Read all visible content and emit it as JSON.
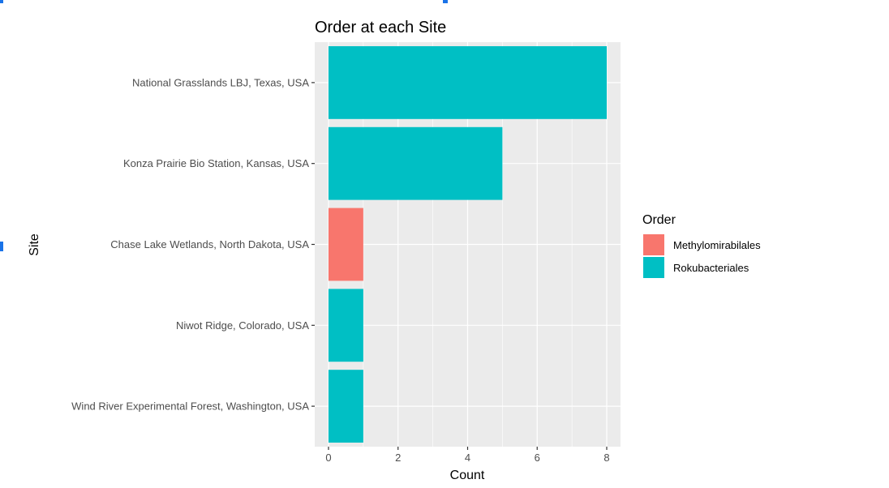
{
  "chart_data": {
    "type": "bar",
    "orientation": "horizontal",
    "title": "Order at each Site",
    "xlabel": "Count",
    "ylabel": "Site",
    "xlim": [
      0,
      8.4
    ],
    "x_ticks": [
      0,
      2,
      4,
      6,
      8
    ],
    "grid": true,
    "legend": {
      "title": "Order",
      "position": "right"
    },
    "categories": [
      "National Grasslands LBJ, Texas, USA",
      "Konza Prairie Bio Station, Kansas, USA",
      "Chase Lake Wetlands, North Dakota, USA",
      "Niwot Ridge, Colorado, USA",
      "Wind River Experimental Forest, Washington, USA"
    ],
    "series": [
      {
        "name": "Methylomirabilales",
        "color": "#F8766D",
        "values": [
          0,
          0,
          1,
          0,
          0
        ]
      },
      {
        "name": "Rokubacteriales",
        "color": "#00BFC4",
        "values": [
          8,
          5,
          0,
          1,
          1
        ]
      }
    ]
  }
}
